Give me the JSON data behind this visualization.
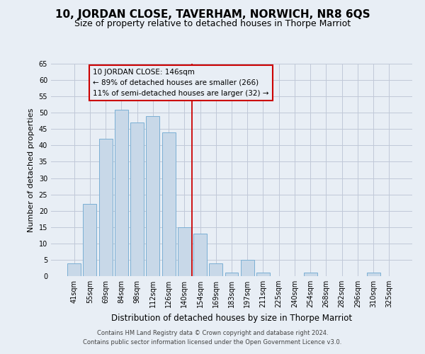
{
  "title": "10, JORDAN CLOSE, TAVERHAM, NORWICH, NR8 6QS",
  "subtitle": "Size of property relative to detached houses in Thorpe Marriot",
  "xlabel": "Distribution of detached houses by size in Thorpe Marriot",
  "ylabel": "Number of detached properties",
  "footer_line1": "Contains HM Land Registry data © Crown copyright and database right 2024.",
  "footer_line2": "Contains public sector information licensed under the Open Government Licence v3.0.",
  "categories": [
    "41sqm",
    "55sqm",
    "69sqm",
    "84sqm",
    "98sqm",
    "112sqm",
    "126sqm",
    "140sqm",
    "154sqm",
    "169sqm",
    "183sqm",
    "197sqm",
    "211sqm",
    "225sqm",
    "240sqm",
    "254sqm",
    "268sqm",
    "282sqm",
    "296sqm",
    "310sqm",
    "325sqm"
  ],
  "values": [
    4,
    22,
    42,
    51,
    47,
    49,
    44,
    15,
    13,
    4,
    1,
    5,
    1,
    0,
    0,
    1,
    0,
    0,
    0,
    1,
    0
  ],
  "bar_color": "#c8d8e8",
  "bar_edge_color": "#7bafd4",
  "grid_color": "#c0c8d8",
  "background_color": "#e8eef5",
  "vline_x": 7.5,
  "vline_color": "#cc0000",
  "annotation_title": "10 JORDAN CLOSE: 146sqm",
  "annotation_line1": "← 89% of detached houses are smaller (266)",
  "annotation_line2": "11% of semi-detached houses are larger (32) →",
  "annotation_box_color": "#cc0000",
  "ylim": [
    0,
    65
  ],
  "yticks": [
    0,
    5,
    10,
    15,
    20,
    25,
    30,
    35,
    40,
    45,
    50,
    55,
    60,
    65
  ],
  "title_fontsize": 11,
  "subtitle_fontsize": 9,
  "xlabel_fontsize": 8.5,
  "ylabel_fontsize": 8,
  "tick_fontsize": 7,
  "annotation_fontsize": 7.5,
  "footer_fontsize": 6
}
